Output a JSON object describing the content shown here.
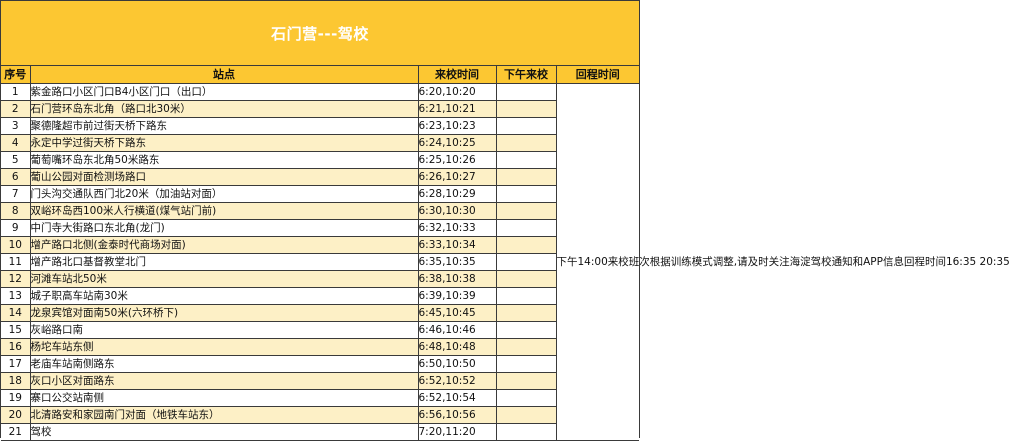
{
  "title": "石门营---驾校",
  "headers": {
    "no": "序号",
    "stop": "站点",
    "morning": "来校时间",
    "afternoon": "下午来校",
    "return": "回程时间"
  },
  "rows": [
    {
      "no": "1",
      "stop": "紫金路口小区门口B4小区门口（出口）",
      "time": "6:20,10:20"
    },
    {
      "no": "2",
      "stop": "石门营环岛东北角（路口北30米）",
      "time": "6:21,10:21"
    },
    {
      "no": "3",
      "stop": "聚德隆超市前过街天桥下路东",
      "time": "6:23,10:23"
    },
    {
      "no": "4",
      "stop": "永定中学过街天桥下路东",
      "time": "6:24,10:25"
    },
    {
      "no": "5",
      "stop": "葡萄嘴环岛东北角50米路东",
      "time": "6:25,10:26"
    },
    {
      "no": "6",
      "stop": "葡山公园对面检测场路口",
      "time": "6:26,10:27"
    },
    {
      "no": "7",
      "stop": "门头沟交通队西门北20米（加油站对面）",
      "time": "6:28,10:29"
    },
    {
      "no": "8",
      "stop": "双峪环岛西100米人行横道(煤气站门前)",
      "time": "6:30,10:30"
    },
    {
      "no": "9",
      "stop": "中门寺大街路口东北角(龙门)",
      "time": "6:32,10:33"
    },
    {
      "no": "10",
      "stop": "增产路口北侧(金泰时代商场对面)",
      "time": "6:33,10:34"
    },
    {
      "no": "11",
      "stop": "增产路北口基督教堂北门",
      "time": "6:35,10:35"
    },
    {
      "no": "12",
      "stop": "河滩车站北50米",
      "time": "6:38,10:38"
    },
    {
      "no": "13",
      "stop": "城子职高车站南30米",
      "time": "6:39,10:39"
    },
    {
      "no": "14",
      "stop": "龙泉宾馆对面南50米(六环桥下)",
      "time": "6:45,10:45"
    },
    {
      "no": "15",
      "stop": "灰峪路口南",
      "time": "6:46,10:46"
    },
    {
      "no": "16",
      "stop": "杨坨车站东侧",
      "time": "6:48,10:48"
    },
    {
      "no": "17",
      "stop": "老庙车站南侧路东",
      "time": "6:50,10:50"
    },
    {
      "no": "18",
      "stop": "灰口小区对面路东",
      "time": "6:52,10:52"
    },
    {
      "no": "19",
      "stop": "寨口公交站南侧",
      "time": "6:52,10:54"
    },
    {
      "no": "20",
      "stop": "北清路安和家园南门对面（地铁车站东）",
      "time": "6:56,10:56"
    },
    {
      "no": "21",
      "stop": "驾校",
      "time": "7:20,11:20"
    }
  ],
  "return_note": "下午14:00来校班次根据训练模式调整,请及时关注海淀驾校通知和APP信息回程时间16:35 20:35",
  "colors": {
    "header_bg": "#fcc732",
    "row_alt_bg": "#fdf0c6",
    "title_text": "#ffffff"
  }
}
